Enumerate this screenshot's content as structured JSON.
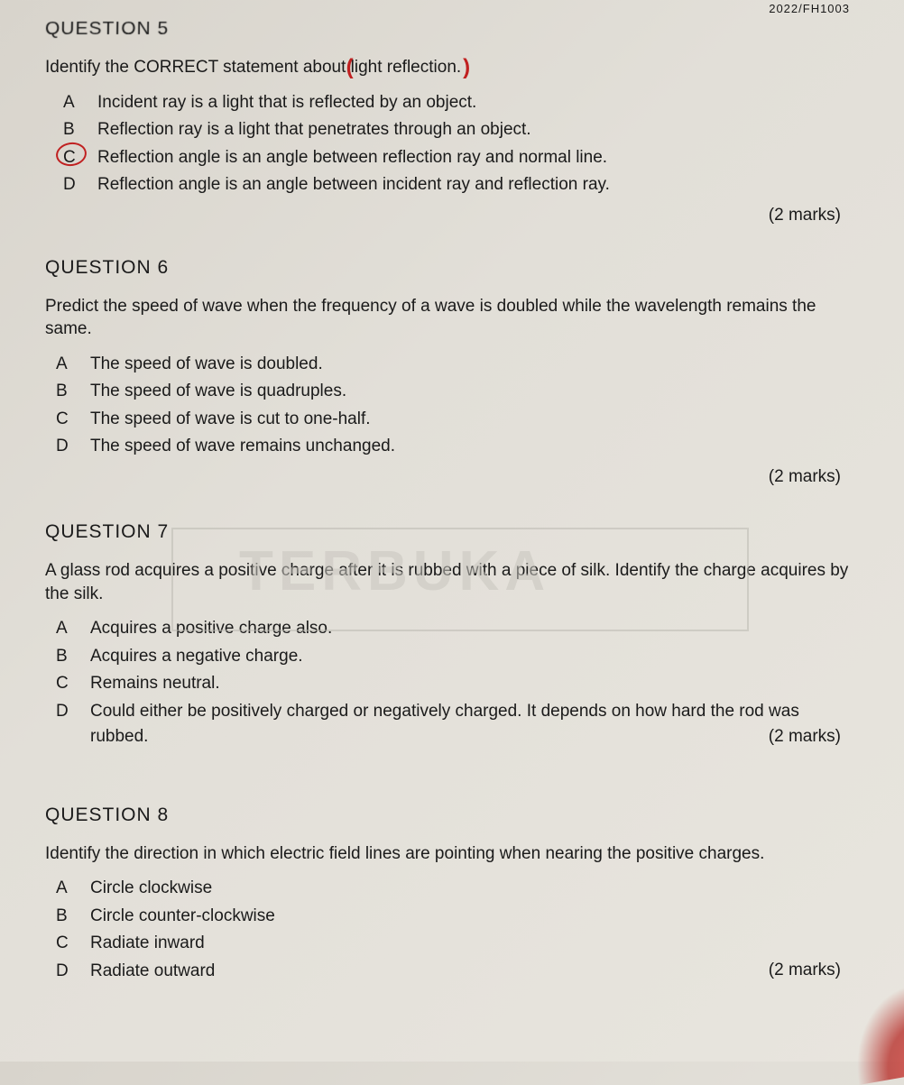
{
  "header_code": "2022/FH1003",
  "watermark": "TERBUKA",
  "questions": {
    "q5": {
      "title": "QUESTION 5",
      "text_before": "Identify the CORRECT statement about ",
      "text_highlight": "light reflection.",
      "options": {
        "A": "Incident ray is a light that is reflected by an object.",
        "B": "Reflection ray is a light that penetrates through an object.",
        "C": "Reflection angle is an angle between reflection ray and normal line.",
        "D": "Reflection angle is an angle between incident ray and reflection ray."
      },
      "circled": "C",
      "marks": "(2 marks)"
    },
    "q6": {
      "title": "QUESTION 6",
      "text": "Predict the speed of wave when the frequency of a wave is doubled while the wavelength remains the same.",
      "options": {
        "A": "The speed of wave is doubled.",
        "B": "The speed of wave is quadruples.",
        "C": "The speed of wave is cut to one-half.",
        "D": "The speed of wave remains unchanged."
      },
      "marks": "(2 marks)"
    },
    "q7": {
      "title": "QUESTION 7",
      "text": "A glass rod acquires a positive charge after it is rubbed with a piece of silk. Identify the charge acquires by the silk.",
      "options": {
        "A": "Acquires a positive charge also.",
        "B": "Acquires a negative charge.",
        "C": "Remains neutral.",
        "D": "Could either be positively charged or negatively charged.  It depends on how hard the rod was rubbed."
      },
      "marks": "(2 marks)"
    },
    "q8": {
      "title": "QUESTION 8",
      "text": "Identify the direction in which electric field lines are pointing when nearing the positive charges.",
      "options": {
        "A": "Circle clockwise",
        "B": "Circle counter-clockwise",
        "C": "Radiate inward",
        "D": "Radiate outward"
      },
      "marks": "(2 marks)"
    }
  }
}
